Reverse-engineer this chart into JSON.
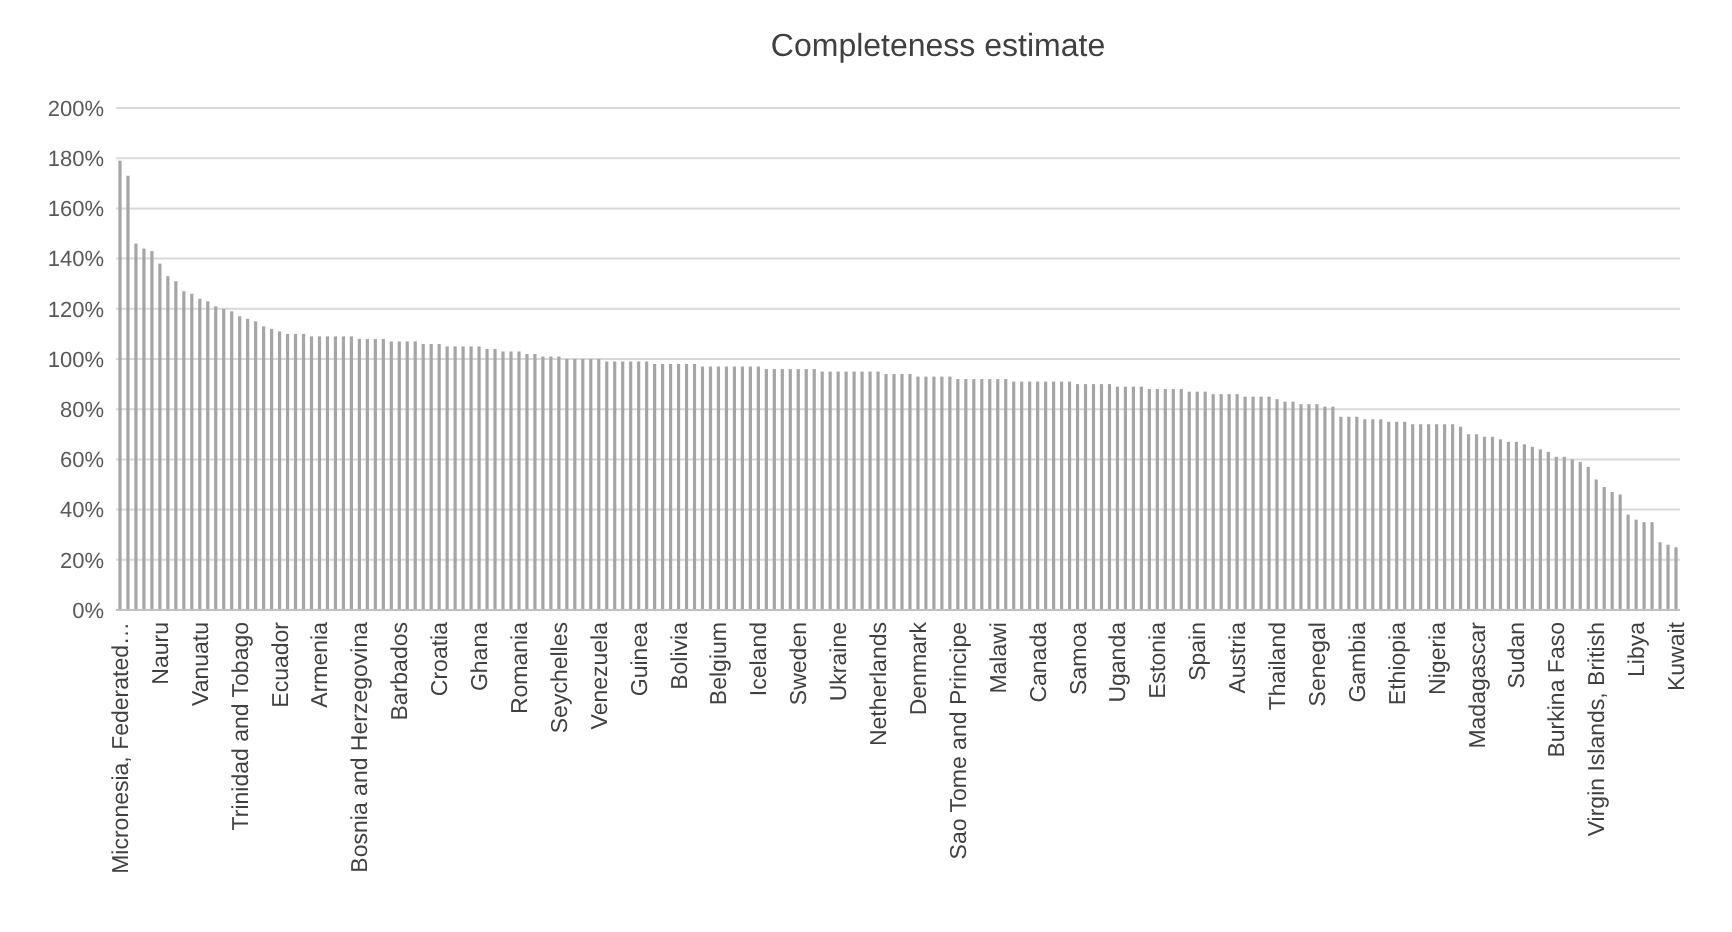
{
  "chart_data": {
    "type": "bar",
    "title": "Completeness estimate",
    "categories": [
      "Micronesia, Federated…",
      null,
      null,
      null,
      null,
      "Nauru",
      null,
      null,
      null,
      null,
      "Vanuatu",
      null,
      null,
      null,
      null,
      "Trinidad and Tobago",
      null,
      null,
      null,
      null,
      "Ecuador",
      null,
      null,
      null,
      null,
      "Armenia",
      null,
      null,
      null,
      null,
      "Bosnia and Herzegovina",
      null,
      null,
      null,
      null,
      "Barbados",
      null,
      null,
      null,
      null,
      "Croatia",
      null,
      null,
      null,
      null,
      "Ghana",
      null,
      null,
      null,
      null,
      "Romania",
      null,
      null,
      null,
      null,
      "Seychelles",
      null,
      null,
      null,
      null,
      "Venezuela",
      null,
      null,
      null,
      null,
      "Guinea",
      null,
      null,
      null,
      null,
      "Bolivia",
      null,
      null,
      null,
      null,
      "Belgium",
      null,
      null,
      null,
      null,
      "Iceland",
      null,
      null,
      null,
      null,
      "Sweden",
      null,
      null,
      null,
      null,
      "Ukraine",
      null,
      null,
      null,
      null,
      "Netherlands",
      null,
      null,
      null,
      null,
      "Denmark",
      null,
      null,
      null,
      null,
      "Sao Tome and Principe",
      null,
      null,
      null,
      null,
      "Malawi",
      null,
      null,
      null,
      null,
      "Canada",
      null,
      null,
      null,
      null,
      "Samoa",
      null,
      null,
      null,
      null,
      "Uganda",
      null,
      null,
      null,
      null,
      "Estonia",
      null,
      null,
      null,
      null,
      "Spain",
      null,
      null,
      null,
      null,
      "Austria",
      null,
      null,
      null,
      null,
      "Thailand",
      null,
      null,
      null,
      null,
      "Senegal",
      null,
      null,
      null,
      null,
      "Gambia",
      null,
      null,
      null,
      null,
      "Ethiopia",
      null,
      null,
      null,
      null,
      "Nigeria",
      null,
      null,
      null,
      null,
      "Madagascar",
      null,
      null,
      null,
      null,
      "Sudan",
      null,
      null,
      null,
      null,
      "Burkina Faso",
      null,
      null,
      null,
      null,
      "Virgin Islands, British",
      null,
      null,
      null,
      null,
      "Libya",
      null,
      null,
      null,
      null,
      "Kuwait"
    ],
    "values": [
      179,
      173,
      146,
      144,
      143,
      138,
      133,
      131,
      127,
      126,
      124,
      123,
      121,
      120,
      119,
      117,
      116,
      115,
      113,
      112,
      111,
      110,
      110,
      110,
      109,
      109,
      109,
      109,
      109,
      109,
      108,
      108,
      108,
      108,
      107,
      107,
      107,
      107,
      106,
      106,
      106,
      105,
      105,
      105,
      105,
      105,
      104,
      104,
      103,
      103,
      103,
      102,
      102,
      101,
      101,
      101,
      100,
      100,
      100,
      100,
      100,
      99,
      99,
      99,
      99,
      99,
      99,
      98,
      98,
      98,
      98,
      98,
      98,
      97,
      97,
      97,
      97,
      97,
      97,
      97,
      97,
      96,
      96,
      96,
      96,
      96,
      96,
      96,
      95,
      95,
      95,
      95,
      95,
      95,
      95,
      95,
      94,
      94,
      94,
      94,
      93,
      93,
      93,
      93,
      93,
      92,
      92,
      92,
      92,
      92,
      92,
      92,
      91,
      91,
      91,
      91,
      91,
      91,
      91,
      91,
      90,
      90,
      90,
      90,
      90,
      89,
      89,
      89,
      89,
      88,
      88,
      88,
      88,
      88,
      87,
      87,
      87,
      86,
      86,
      86,
      86,
      85,
      85,
      85,
      85,
      84,
      83,
      83,
      82,
      82,
      82,
      81,
      81,
      77,
      77,
      77,
      76,
      76,
      76,
      75,
      75,
      75,
      74,
      74,
      74,
      74,
      74,
      74,
      73,
      70,
      70,
      69,
      69,
      68,
      67,
      67,
      66,
      65,
      64,
      63,
      61,
      61,
      60,
      59,
      57,
      52,
      49,
      47,
      46,
      38,
      36,
      35,
      35,
      27,
      26,
      25
    ],
    "color": "#a5a5a5",
    "ylim": [
      0,
      200
    ],
    "yticks": [
      {
        "value": 0,
        "label": "0%"
      },
      {
        "value": 20,
        "label": "20%"
      },
      {
        "value": 40,
        "label": "40%"
      },
      {
        "value": 60,
        "label": "60%"
      },
      {
        "value": 80,
        "label": "80%"
      },
      {
        "value": 100,
        "label": "100%"
      },
      {
        "value": 120,
        "label": "120%"
      },
      {
        "value": 140,
        "label": "140%"
      },
      {
        "value": 160,
        "label": "160%"
      },
      {
        "value": 180,
        "label": "180%"
      },
      {
        "value": 200,
        "label": "200%"
      }
    ],
    "grid": "y"
  }
}
